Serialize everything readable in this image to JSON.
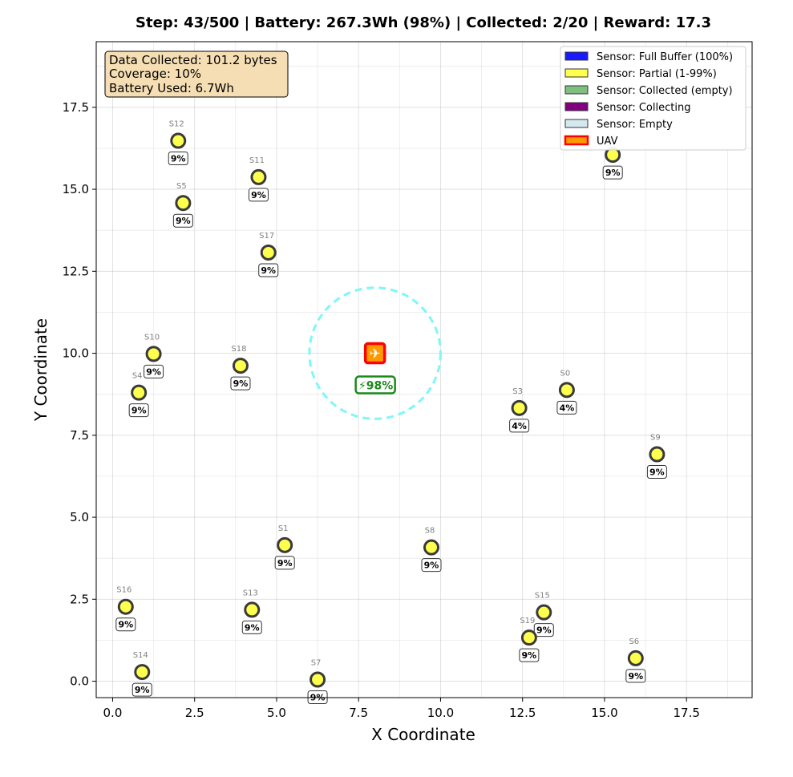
{
  "chart_data": {
    "type": "scatter",
    "title": "Step: 43/500 | Battery: 267.3Wh (98%) | Collected: 2/20 | Reward: 17.3",
    "xlabel": "X Coordinate",
    "ylabel": "Y Coordinate",
    "xlim": [
      -0.5,
      19.5
    ],
    "ylim": [
      -0.5,
      19.5
    ],
    "x_ticks": [
      "0.0",
      "2.5",
      "5.0",
      "7.5",
      "10.0",
      "12.5",
      "15.0",
      "17.5"
    ],
    "x_tick_values": [
      0,
      2.5,
      5,
      7.5,
      10,
      12.5,
      15,
      17.5
    ],
    "y_ticks": [
      "0.0",
      "2.5",
      "5.0",
      "7.5",
      "10.0",
      "12.5",
      "15.0",
      "17.5"
    ],
    "y_tick_values": [
      0,
      2.5,
      5,
      7.5,
      10,
      12.5,
      15,
      17.5
    ],
    "grid": true,
    "legend_placement": "top-right",
    "legend": [
      {
        "label": "Sensor: Full Buffer (100%)",
        "color": "#1a1aff"
      },
      {
        "label": "Sensor: Partial (1-99%)",
        "color": "#ffff4d"
      },
      {
        "label": "Sensor: Collected (empty)",
        "color": "#7fbf7f"
      },
      {
        "label": "Sensor: Collecting",
        "color": "#800080"
      },
      {
        "label": "Sensor: Empty",
        "color": "#d4e8ee"
      },
      {
        "label": "UAV",
        "color": "#ff9900",
        "edge": "#ff0000"
      }
    ],
    "sensors": [
      {
        "id": "S0",
        "x": 13.85,
        "y": 8.88,
        "buffer": "4%"
      },
      {
        "id": "S1",
        "x": 5.25,
        "y": 4.15,
        "buffer": "9%"
      },
      {
        "id": "S2",
        "x": 15.25,
        "y": 16.05,
        "buffer": "9%"
      },
      {
        "id": "S3",
        "x": 12.4,
        "y": 8.33,
        "buffer": "4%"
      },
      {
        "id": "S4",
        "x": 0.8,
        "y": 8.8,
        "buffer": "9%"
      },
      {
        "id": "S5",
        "x": 2.15,
        "y": 14.58,
        "buffer": "9%"
      },
      {
        "id": "S6",
        "x": 15.95,
        "y": 0.7,
        "buffer": "9%"
      },
      {
        "id": "S7",
        "x": 6.25,
        "y": 0.05,
        "buffer": "9%"
      },
      {
        "id": "S8",
        "x": 9.72,
        "y": 4.08,
        "buffer": "9%"
      },
      {
        "id": "S9",
        "x": 16.6,
        "y": 6.92,
        "buffer": "9%"
      },
      {
        "id": "S10",
        "x": 1.25,
        "y": 9.98,
        "buffer": "9%"
      },
      {
        "id": "S11",
        "x": 4.45,
        "y": 15.37,
        "buffer": "9%"
      },
      {
        "id": "S12",
        "x": 2.0,
        "y": 16.48,
        "buffer": "9%"
      },
      {
        "id": "S13",
        "x": 4.25,
        "y": 2.18,
        "buffer": "9%"
      },
      {
        "id": "S14",
        "x": 0.9,
        "y": 0.28,
        "buffer": "9%"
      },
      {
        "id": "S15",
        "x": 13.15,
        "y": 2.1,
        "buffer": "9%"
      },
      {
        "id": "S16",
        "x": 0.4,
        "y": 2.27,
        "buffer": "9%"
      },
      {
        "id": "S17",
        "x": 4.75,
        "y": 13.07,
        "buffer": "9%"
      },
      {
        "id": "S18",
        "x": 3.9,
        "y": 9.62,
        "buffer": "9%"
      },
      {
        "id": "S19",
        "x": 12.7,
        "y": 1.33,
        "buffer": "9%"
      }
    ],
    "uav": {
      "x": 8.0,
      "y": 10.0,
      "battery_label": "⚡98%",
      "range_radius": 2.0,
      "icon": "✈"
    },
    "info_box": [
      "Data Collected: 101.2 bytes",
      "Coverage: 10%",
      "Battery Used: 6.7Wh"
    ]
  }
}
